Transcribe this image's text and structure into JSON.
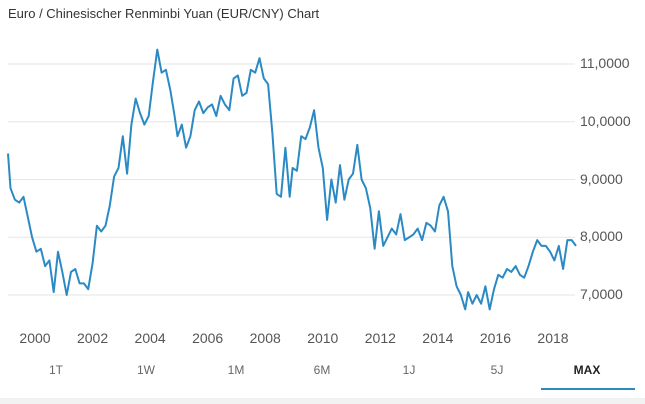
{
  "header": {
    "title": "Euro / Chinesischer Renminbi Yuan (EUR/CNY) Chart"
  },
  "colors": {
    "line": "#2b8ac4",
    "grid": "#e6e6e6",
    "active_tab_underline": "#2b8ac4"
  },
  "range_tabs": [
    {
      "label": "1T",
      "active": false
    },
    {
      "label": "1W",
      "active": false
    },
    {
      "label": "1M",
      "active": false
    },
    {
      "label": "6M",
      "active": false
    },
    {
      "label": "1J",
      "active": false
    },
    {
      "label": "5J",
      "active": false
    },
    {
      "label": "MAX",
      "active": true
    }
  ],
  "chart_data": {
    "type": "line",
    "title": "Euro / Chinesischer Renminbi Yuan (EUR/CNY) Chart",
    "xlabel": "",
    "ylabel": "",
    "ylim": [
      6.6,
      11.3
    ],
    "xlim": [
      1999.0,
      2019.0
    ],
    "grid": true,
    "legend": "none",
    "y_ticks": [
      "11,0000",
      "10,0000",
      "9,0000",
      "8,0000",
      "7,0000"
    ],
    "y_tick_values": [
      11,
      10,
      9,
      8,
      7
    ],
    "x_ticks": [
      "2000",
      "2002",
      "2004",
      "2006",
      "2008",
      "2010",
      "2012",
      "2014",
      "2016",
      "2018"
    ],
    "series": [
      {
        "name": "EUR/CNY",
        "x": [
          1999.0,
          1999.15,
          1999.3,
          1999.45,
          1999.6,
          1999.75,
          1999.9,
          2000.05,
          2000.2,
          2000.35,
          2000.5,
          2000.65,
          2000.8,
          2000.95,
          2001.1,
          2001.25,
          2001.4,
          2001.55,
          2001.7,
          2001.85,
          2002.0,
          2002.15,
          2002.3,
          2002.45,
          2002.6,
          2002.75,
          2002.9,
          2003.05,
          2003.2,
          2003.35,
          2003.5,
          2003.65,
          2003.8,
          2003.95,
          2004.1,
          2004.25,
          2004.4,
          2004.55,
          2004.7,
          2004.85,
          2004.95,
          2005.1,
          2005.25,
          2005.4,
          2005.55,
          2005.7,
          2005.85,
          2006.0,
          2006.15,
          2006.3,
          2006.45,
          2006.6,
          2006.75,
          2006.9,
          2007.05,
          2007.2,
          2007.35,
          2007.5,
          2007.65,
          2007.8,
          2007.95,
          2008.1,
          2008.25,
          2008.4,
          2008.55,
          2008.7,
          2008.85,
          2008.95,
          2009.1,
          2009.25,
          2009.4,
          2009.55,
          2009.7,
          2009.85,
          2010.0,
          2010.15,
          2010.3,
          2010.45,
          2010.6,
          2010.75,
          2010.9,
          2011.05,
          2011.2,
          2011.35,
          2011.5,
          2011.65,
          2011.8,
          2011.95,
          2012.1,
          2012.25,
          2012.4,
          2012.55,
          2012.7,
          2012.85,
          2013.0,
          2013.15,
          2013.3,
          2013.45,
          2013.6,
          2013.75,
          2013.9,
          2014.05,
          2014.2,
          2014.35,
          2014.5,
          2014.65,
          2014.8,
          2014.95,
          2015.05,
          2015.2,
          2015.35,
          2015.5,
          2015.65,
          2015.8,
          2015.95,
          2016.1,
          2016.25,
          2016.4,
          2016.55,
          2016.7,
          2016.85,
          2017.0,
          2017.15,
          2017.3,
          2017.45,
          2017.6,
          2017.75,
          2017.9,
          2018.05,
          2018.2,
          2018.35,
          2018.5,
          2018.65,
          2018.8
        ],
        "values": [
          9.45,
          8.85,
          8.65,
          8.6,
          8.7,
          8.35,
          8.0,
          7.75,
          7.8,
          7.5,
          7.6,
          7.05,
          7.75,
          7.4,
          7.0,
          7.4,
          7.45,
          7.2,
          7.2,
          7.1,
          7.55,
          8.2,
          8.1,
          8.2,
          8.55,
          9.05,
          9.2,
          9.75,
          9.1,
          9.95,
          10.4,
          10.15,
          9.95,
          10.1,
          10.7,
          11.25,
          10.85,
          10.9,
          10.55,
          10.1,
          9.75,
          9.95,
          9.55,
          9.75,
          10.2,
          10.35,
          10.15,
          10.25,
          10.3,
          10.1,
          10.45,
          10.3,
          10.2,
          10.75,
          10.8,
          10.45,
          10.5,
          10.9,
          10.85,
          11.1,
          10.75,
          10.65,
          9.8,
          8.75,
          8.7,
          9.55,
          8.7,
          9.2,
          9.15,
          9.75,
          9.7,
          9.9,
          10.2,
          9.55,
          9.2,
          8.3,
          9.0,
          8.6,
          9.25,
          8.65,
          9.0,
          9.1,
          9.6,
          9.0,
          8.85,
          8.5,
          7.8,
          8.45,
          7.85,
          8.0,
          8.15,
          8.05,
          8.4,
          7.95,
          8.0,
          8.05,
          8.15,
          7.95,
          8.25,
          8.2,
          8.1,
          8.55,
          8.7,
          8.45,
          7.5,
          7.15,
          7.0,
          6.75,
          7.05,
          6.85,
          7.0,
          6.85,
          7.15,
          6.75,
          7.1,
          7.35,
          7.3,
          7.45,
          7.4,
          7.5,
          7.35,
          7.3,
          7.5,
          7.75,
          7.95,
          7.85,
          7.85,
          7.75,
          7.6,
          7.85,
          7.45,
          7.95,
          7.95,
          7.85
        ]
      }
    ]
  }
}
